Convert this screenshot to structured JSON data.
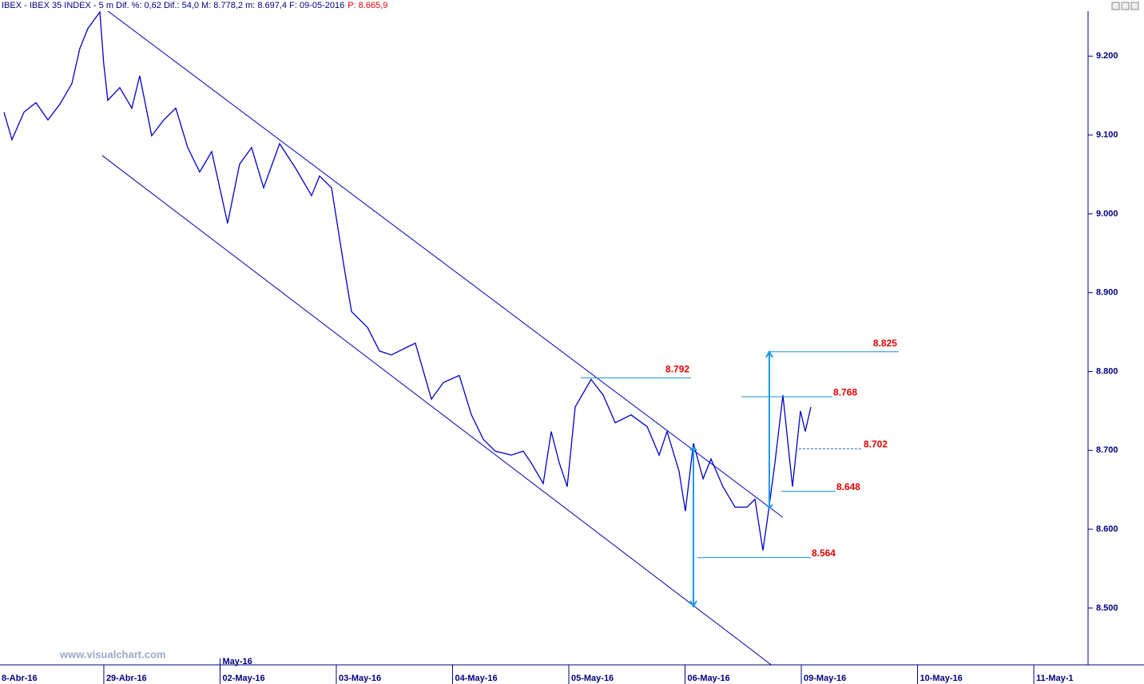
{
  "chart_data": {
    "type": "line",
    "header_text": "IBEX - IBEX 35 INDEX - 5 m  Dif. %: 0,62  Dif.: 54,0  M: 8.778,2  m: 8.697,4  F: 09-05-2016",
    "header_price": "P: 8.665,9",
    "watermark": "www.visualchart.com",
    "color": "#0000c8",
    "x": [
      0.141,
      0.21,
      0.313,
      0.416,
      0.519,
      0.622,
      0.725,
      0.794,
      0.863,
      0.966,
      1.0,
      1.034,
      1.137,
      1.241,
      1.309,
      1.412,
      1.515,
      1.619,
      1.722,
      1.825,
      1.928,
      2.065,
      2.168,
      2.271,
      2.375,
      2.512,
      2.649,
      2.787,
      2.856,
      2.959,
      3.062,
      3.131,
      3.268,
      3.371,
      3.474,
      3.68,
      3.818,
      3.921,
      4.058,
      4.162,
      4.265,
      4.368,
      4.505,
      4.608,
      4.677,
      4.78,
      4.849,
      4.918,
      4.986,
      5.055,
      5.192,
      5.296,
      5.399,
      5.536,
      5.674,
      5.777,
      5.845,
      5.948,
      6.003,
      6.072,
      6.155,
      6.223,
      6.326,
      6.43,
      6.533,
      6.601,
      6.67,
      6.718,
      6.773,
      6.842,
      6.924,
      6.993,
      7.034,
      7.082
    ],
    "values": [
      9129,
      9094,
      9129,
      9141,
      9119,
      9139,
      9165,
      9210,
      9235,
      9256,
      9190,
      9144,
      9160,
      9134,
      9175,
      9099,
      9119,
      9134,
      9084,
      9053,
      9079,
      8988,
      9063,
      9084,
      9033,
      9089,
      9058,
      9023,
      9048,
      9033,
      8937,
      8876,
      8856,
      8826,
      8821,
      8836,
      8765,
      8786,
      8795,
      8745,
      8714,
      8699,
      8694,
      8699,
      8684,
      8658,
      8724,
      8684,
      8654,
      8755,
      8790,
      8770,
      8735,
      8745,
      8730,
      8694,
      8724,
      8674,
      8623,
      8709,
      8664,
      8689,
      8654,
      8628,
      8628,
      8638,
      8573,
      8623,
      8684,
      8770,
      8654,
      8750,
      8724,
      8755
    ],
    "xlim": [
      0.107,
      9.467
    ],
    "xticks": [
      {
        "value": 0,
        "label": "8-Abr-16"
      },
      {
        "value": 1,
        "label": "29-Abr-16"
      },
      {
        "value": 2,
        "label": "02-May-16"
      },
      {
        "value": 3,
        "label": "03-May-16"
      },
      {
        "value": 4,
        "label": "04-May-16"
      },
      {
        "value": 5,
        "label": "05-May-16"
      },
      {
        "value": 6,
        "label": "06-May-16"
      },
      {
        "value": 7,
        "label": "09-May-16"
      },
      {
        "value": 8,
        "label": "10-May-16"
      },
      {
        "value": 9,
        "label": "11-May-1"
      }
    ],
    "month_tick": {
      "value": 2,
      "label": "May-16"
    },
    "ylim": [
      8428,
      9257
    ],
    "yticks": [
      {
        "value": 8500,
        "label": "8.500"
      },
      {
        "value": 8600,
        "label": "8.600"
      },
      {
        "value": 8700,
        "label": "8.700"
      },
      {
        "value": 8800,
        "label": "8.800"
      },
      {
        "value": 8900,
        "label": "8.900"
      },
      {
        "value": 9000,
        "label": "9.000"
      },
      {
        "value": 9100,
        "label": "9.100"
      },
      {
        "value": 9200,
        "label": "9.200"
      }
    ],
    "trendlines": [
      {
        "x": [
          1.0,
          6.842
        ],
        "y": [
          9261,
          8615
        ]
      },
      {
        "x": [
          0.986,
          6.759
        ],
        "y": [
          9074,
          8426
        ]
      }
    ],
    "levels": [
      {
        "value": 8792,
        "label": "8.792",
        "x": [
          5.103,
          6.052
        ]
      },
      {
        "value": 8825,
        "label": "8.825",
        "x": [
          6.725,
          7.838
        ]
      },
      {
        "value": 8768,
        "label": "8.768",
        "x": [
          6.485,
          7.268
        ]
      },
      {
        "value": 8702,
        "label": "8.702",
        "x": [
          6.979,
          7.529
        ],
        "style": "dashed"
      },
      {
        "value": 8648,
        "label": "8.648",
        "x": [
          6.828,
          7.295
        ]
      },
      {
        "value": 8564,
        "label": "8.564",
        "x": [
          6.107,
          7.082
        ]
      }
    ],
    "measures": [
      {
        "x": 6.072,
        "from": 8704,
        "to": 8502
      },
      {
        "x": 6.725,
        "from": 8627,
        "to": 8825
      }
    ]
  }
}
